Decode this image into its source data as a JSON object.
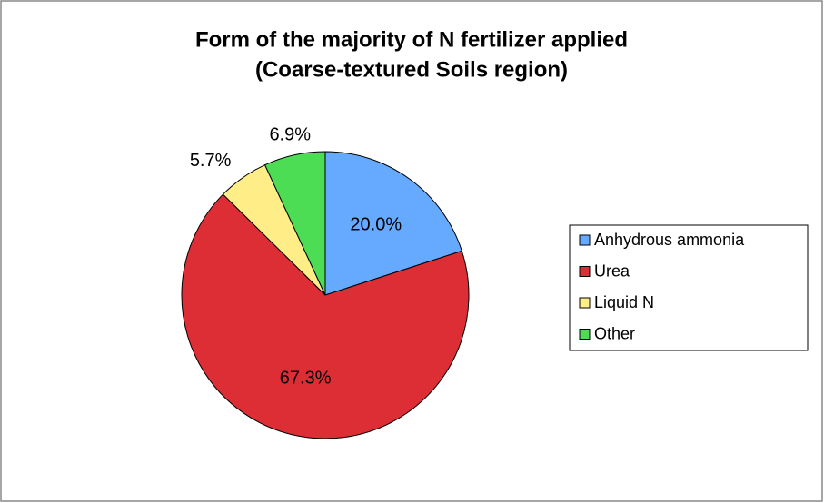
{
  "chart_data": {
    "type": "pie",
    "title": "Form of the majority of N fertilizer applied",
    "subtitle": "(Coarse-textured Soils region)",
    "categories": [
      "Anhydrous ammonia",
      "Urea",
      "Liquid N",
      "Other"
    ],
    "values": [
      20.0,
      67.3,
      5.7,
      6.9
    ],
    "value_labels": [
      "20.0%",
      "67.3%",
      "5.7%",
      "6.9%"
    ],
    "colors": [
      "#66aaff",
      "#dd2e35",
      "#ffee88",
      "#4cdd55"
    ],
    "legend": "right"
  }
}
